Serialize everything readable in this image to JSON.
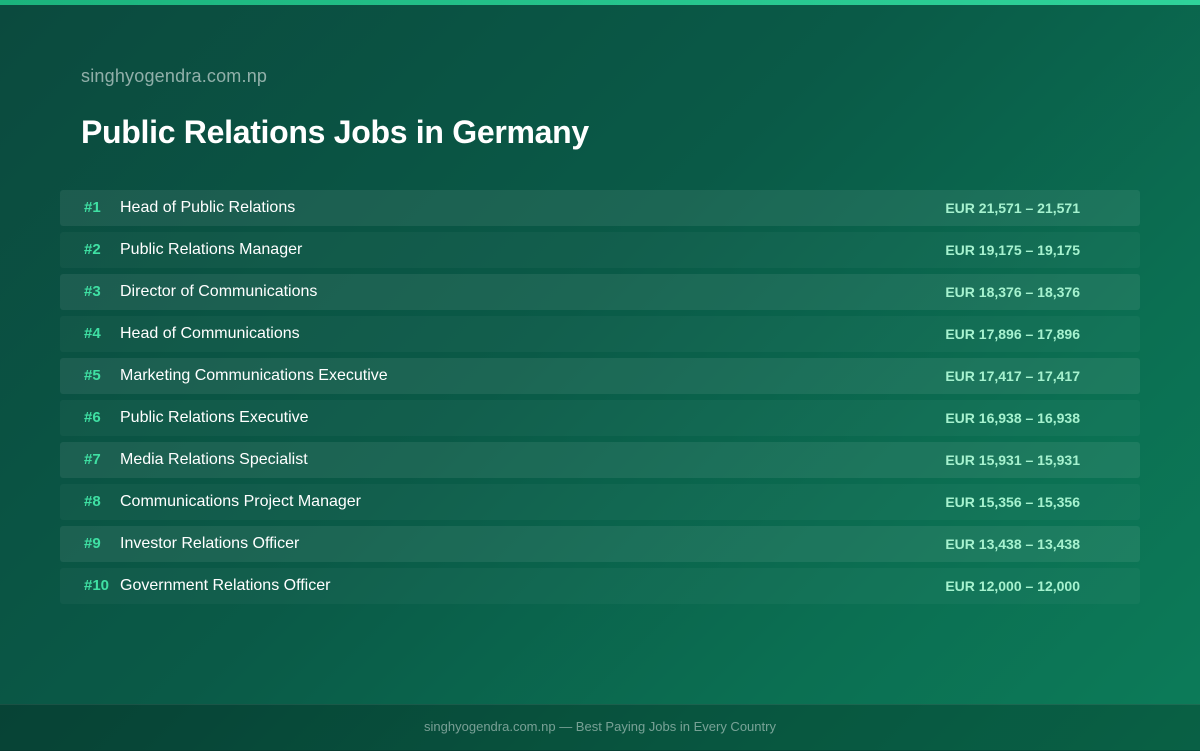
{
  "header": {
    "site": "singhyogendra.com.np",
    "title": "Public Relations Jobs in Germany"
  },
  "jobs": [
    {
      "rank": "#1",
      "title": "Head of Public Relations",
      "salary": "EUR 21,571 – 21,571"
    },
    {
      "rank": "#2",
      "title": "Public Relations Manager",
      "salary": "EUR 19,175 – 19,175"
    },
    {
      "rank": "#3",
      "title": "Director of Communications",
      "salary": "EUR 18,376 – 18,376"
    },
    {
      "rank": "#4",
      "title": "Head of Communications",
      "salary": "EUR 17,896 – 17,896"
    },
    {
      "rank": "#5",
      "title": "Marketing Communications Executive",
      "salary": "EUR 17,417 – 17,417"
    },
    {
      "rank": "#6",
      "title": "Public Relations Executive",
      "salary": "EUR 16,938 – 16,938"
    },
    {
      "rank": "#7",
      "title": "Media Relations Specialist",
      "salary": "EUR 15,931 – 15,931"
    },
    {
      "rank": "#8",
      "title": "Communications Project Manager",
      "salary": "EUR 15,356 – 15,356"
    },
    {
      "rank": "#9",
      "title": "Investor Relations Officer",
      "salary": "EUR 13,438 – 13,438"
    },
    {
      "rank": "#10",
      "title": "Government Relations Officer",
      "salary": "EUR 12,000 – 12,000"
    }
  ],
  "footer": {
    "text": "singhyogendra.com.np — Best Paying Jobs in Every Country"
  },
  "colors": {
    "accent": "#3fe0a3",
    "salary": "#a6f2cf",
    "background": "#0a5a47"
  }
}
